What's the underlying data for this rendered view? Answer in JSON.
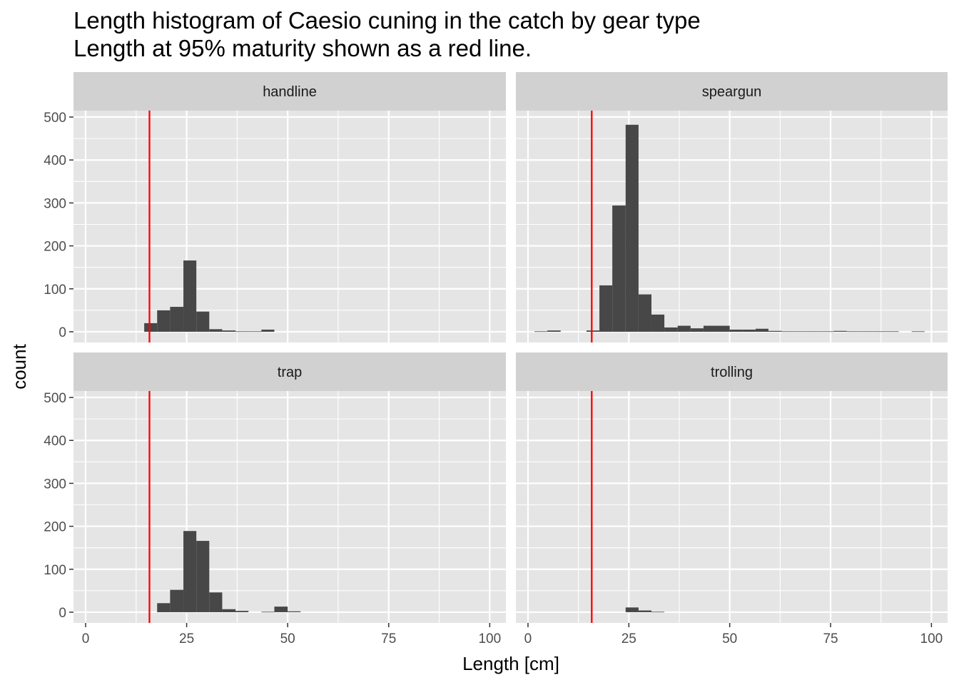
{
  "chart_data": {
    "type": "bar",
    "title": "Length histogram of Caesio cuning in the catch by gear type",
    "subtitle": "Length at 95% maturity shown as a red line.",
    "xlabel": "Length [cm]",
    "ylabel": "count",
    "xlim": [
      -3,
      104
    ],
    "ylim": [
      -25,
      515
    ],
    "x_ticks": [
      0,
      25,
      50,
      75,
      100
    ],
    "y_ticks": [
      0,
      100,
      200,
      300,
      400,
      500
    ],
    "grid": true,
    "maturity_length": 15.8,
    "colors": {
      "panel_background": "#e5e5e5",
      "grid": "#ffffff",
      "strip_background": "#d1d1d1",
      "bar": "#474747",
      "maturity_line": "#ff0000"
    },
    "facets": [
      {
        "name": "handline",
        "bins": [
          {
            "x0": 14.5,
            "x1": 17.7,
            "count": 20
          },
          {
            "x0": 17.7,
            "x1": 20.9,
            "count": 50
          },
          {
            "x0": 20.9,
            "x1": 24.2,
            "count": 58
          },
          {
            "x0": 24.2,
            "x1": 27.4,
            "count": 166
          },
          {
            "x0": 27.4,
            "x1": 30.6,
            "count": 47
          },
          {
            "x0": 30.6,
            "x1": 33.8,
            "count": 6
          },
          {
            "x0": 33.8,
            "x1": 37.1,
            "count": 3
          },
          {
            "x0": 37.1,
            "x1": 40.3,
            "count": 1
          },
          {
            "x0": 40.3,
            "x1": 43.5,
            "count": 1
          },
          {
            "x0": 43.5,
            "x1": 46.7,
            "count": 5
          }
        ]
      },
      {
        "name": "speargun",
        "bins": [
          {
            "x0": 1.6,
            "x1": 4.8,
            "count": 1
          },
          {
            "x0": 4.8,
            "x1": 8.1,
            "count": 3
          },
          {
            "x0": 14.5,
            "x1": 17.7,
            "count": 3
          },
          {
            "x0": 17.7,
            "x1": 20.9,
            "count": 108
          },
          {
            "x0": 20.9,
            "x1": 24.2,
            "count": 294
          },
          {
            "x0": 24.2,
            "x1": 27.4,
            "count": 482
          },
          {
            "x0": 27.4,
            "x1": 30.6,
            "count": 87
          },
          {
            "x0": 30.6,
            "x1": 33.8,
            "count": 40
          },
          {
            "x0": 33.8,
            "x1": 37.1,
            "count": 10
          },
          {
            "x0": 37.1,
            "x1": 40.3,
            "count": 14
          },
          {
            "x0": 40.3,
            "x1": 43.5,
            "count": 8
          },
          {
            "x0": 43.5,
            "x1": 46.7,
            "count": 14
          },
          {
            "x0": 46.7,
            "x1": 50.0,
            "count": 14
          },
          {
            "x0": 50.0,
            "x1": 53.2,
            "count": 5
          },
          {
            "x0": 53.2,
            "x1": 56.4,
            "count": 5
          },
          {
            "x0": 56.4,
            "x1": 59.6,
            "count": 7
          },
          {
            "x0": 59.6,
            "x1": 62.9,
            "count": 2
          },
          {
            "x0": 62.9,
            "x1": 66.1,
            "count": 1
          },
          {
            "x0": 66.1,
            "x1": 69.3,
            "count": 1
          },
          {
            "x0": 69.3,
            "x1": 72.5,
            "count": 1
          },
          {
            "x0": 72.5,
            "x1": 75.8,
            "count": 1
          },
          {
            "x0": 75.8,
            "x1": 79.0,
            "count": 2
          },
          {
            "x0": 79.0,
            "x1": 82.2,
            "count": 1
          },
          {
            "x0": 82.2,
            "x1": 85.4,
            "count": 1
          },
          {
            "x0": 85.4,
            "x1": 88.7,
            "count": 1
          },
          {
            "x0": 88.7,
            "x1": 91.9,
            "count": 1
          },
          {
            "x0": 95.1,
            "x1": 98.3,
            "count": 1
          }
        ]
      },
      {
        "name": "trap",
        "bins": [
          {
            "x0": 17.7,
            "x1": 20.9,
            "count": 21
          },
          {
            "x0": 20.9,
            "x1": 24.2,
            "count": 52
          },
          {
            "x0": 24.2,
            "x1": 27.4,
            "count": 189
          },
          {
            "x0": 27.4,
            "x1": 30.6,
            "count": 166
          },
          {
            "x0": 30.6,
            "x1": 33.8,
            "count": 46
          },
          {
            "x0": 33.8,
            "x1": 37.1,
            "count": 7
          },
          {
            "x0": 37.1,
            "x1": 40.3,
            "count": 3
          },
          {
            "x0": 43.5,
            "x1": 46.7,
            "count": 1
          },
          {
            "x0": 46.7,
            "x1": 50.0,
            "count": 13
          },
          {
            "x0": 50.0,
            "x1": 53.2,
            "count": 2
          }
        ]
      },
      {
        "name": "trolling",
        "bins": [
          {
            "x0": 24.2,
            "x1": 27.4,
            "count": 11
          },
          {
            "x0": 27.4,
            "x1": 30.6,
            "count": 4
          },
          {
            "x0": 30.6,
            "x1": 33.8,
            "count": 1
          }
        ]
      }
    ]
  }
}
